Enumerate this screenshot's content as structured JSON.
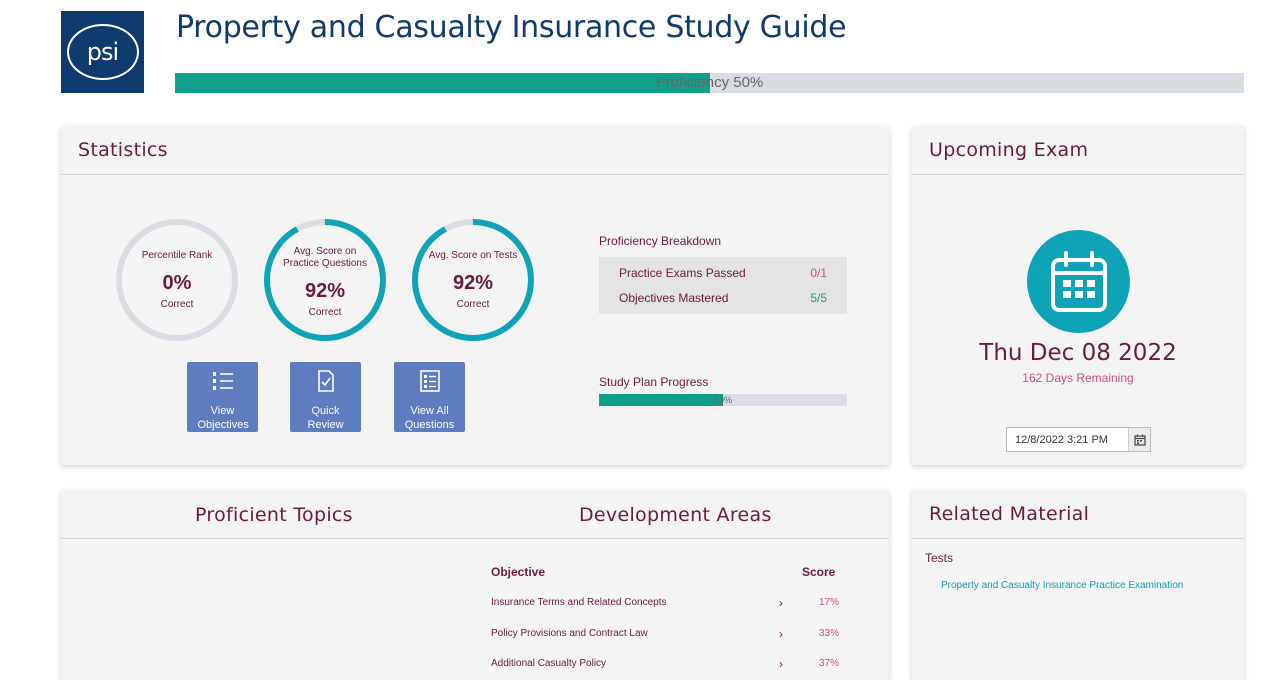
{
  "header": {
    "logo_text": "psi",
    "title": "Property and Casualty Insurance Study Guide",
    "proficiency_label": "Proficiency 50%",
    "proficiency_value": 0.5
  },
  "statistics": {
    "title": "Statistics",
    "circles": [
      {
        "caption": "Percentile Rank",
        "value": "0%",
        "sub": "Correct",
        "fraction": 0
      },
      {
        "caption": "Avg. Score on Practice Questions",
        "value": "92%",
        "sub": "Correct",
        "fraction": 0.92
      },
      {
        "caption": "Avg. Score on Tests",
        "value": "92%",
        "sub": "Correct",
        "fraction": 0.92
      }
    ],
    "tiles": [
      {
        "label": "View Objectives",
        "icon": "list-numbered-icon"
      },
      {
        "label": "Quick Review",
        "icon": "document-check-icon"
      },
      {
        "label": "View All Questions",
        "icon": "checklist-icon"
      }
    ],
    "proficiency_breakdown": {
      "title": "Proficiency Breakdown",
      "rows": [
        {
          "label": "Practice Exams Passed",
          "value": "0/1"
        },
        {
          "label": "Objectives Mastered",
          "value": "5/5"
        }
      ]
    },
    "study_plan": {
      "title": "Study Plan Progress",
      "label": "50%",
      "value": 0.5
    }
  },
  "upcoming_exam": {
    "title": "Upcoming Exam",
    "icon": "calendar-icon",
    "date": "Thu Dec 08 2022",
    "remaining": "162 Days Remaining",
    "input_value": "12/8/2022 3:21 PM"
  },
  "topics": {
    "proficient_title": "Proficient Topics",
    "development_title": "Development Areas",
    "objective_header": "Objective",
    "score_header": "Score",
    "rows": [
      {
        "objective": "Insurance Terms and Related Concepts",
        "score": "17%"
      },
      {
        "objective": "Policy Provisions and Contract Law",
        "score": "33%"
      },
      {
        "objective": "Additional Casualty Policy",
        "score": "37%"
      }
    ]
  },
  "related": {
    "title": "Related Material",
    "subheading": "Tests",
    "link": "Property and Casualty Insurance Practice Examination"
  },
  "colors": {
    "brand_navy": "#0e3a6e",
    "teal": "#10a08a",
    "cyan": "#0fa3b8",
    "maroon": "#6a1a3a",
    "pink": "#d0507a",
    "tile_blue": "#5e7cc0"
  }
}
